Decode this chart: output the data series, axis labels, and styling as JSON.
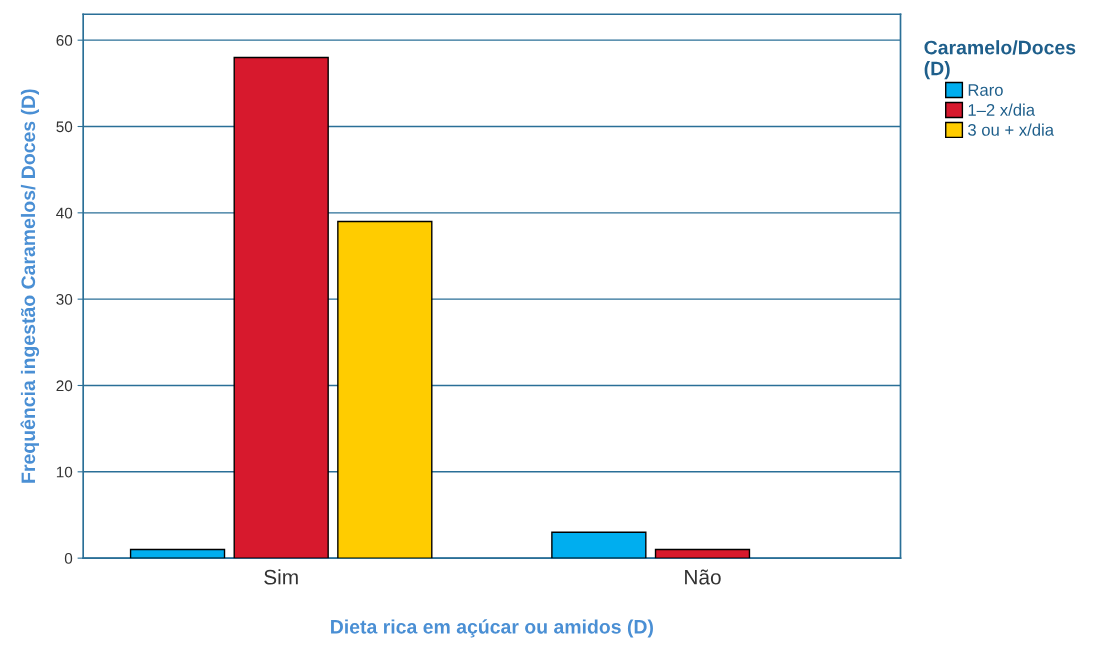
{
  "chart_data": {
    "type": "bar",
    "xlabel": "Dieta rica em açúcar ou amidos (D)",
    "ylabel": "Frequência ingestão Caramelos/ Doces (D)",
    "legend_title": "Caramelo/Doces\n(D)",
    "categories": [
      "Sim",
      "Não"
    ],
    "series": [
      {
        "name": "Raro",
        "color": "#00aeef",
        "values": [
          1,
          3
        ]
      },
      {
        "name": "1–2 x/dia",
        "color": "#d7192d",
        "values": [
          58,
          1
        ]
      },
      {
        "name": "3 ou + x/dia",
        "color": "#ffcc00",
        "values": [
          39,
          null
        ]
      }
    ],
    "ylim": [
      0,
      63
    ],
    "yticks": [
      0,
      10,
      20,
      30,
      40,
      50,
      60
    ],
    "grid": "y",
    "legend": "top right"
  }
}
